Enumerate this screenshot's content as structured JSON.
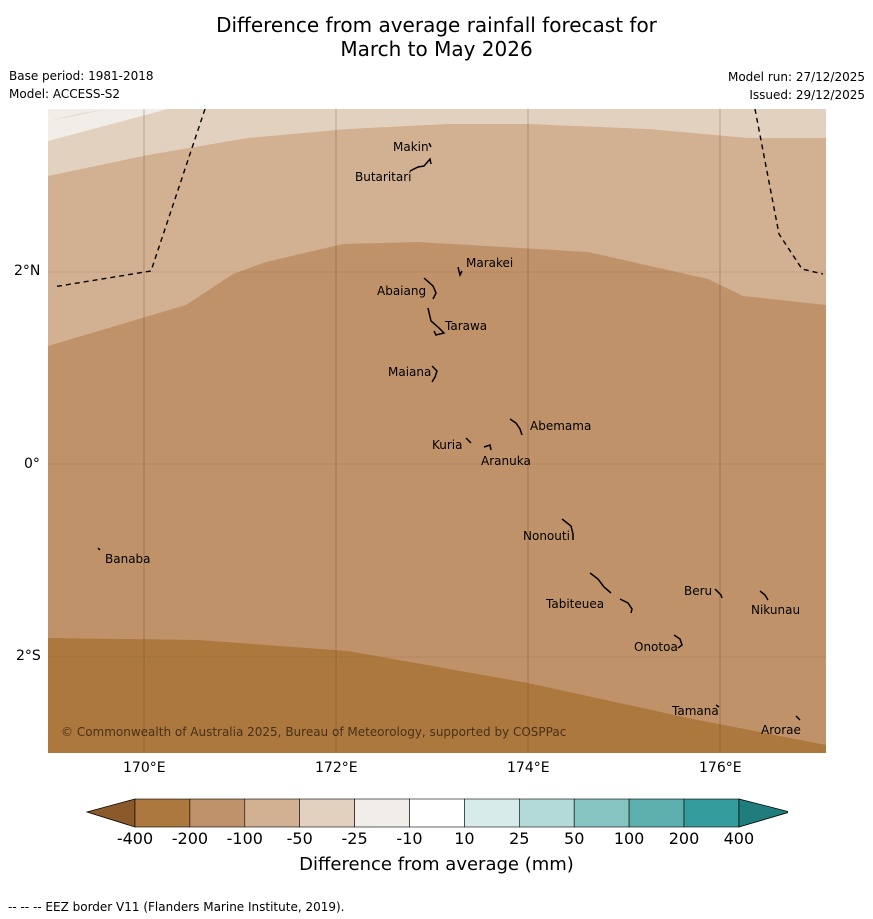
{
  "title_line1": "Difference from average rainfall forecast for",
  "title_line2": "March to May 2026",
  "base_period": "Base period: 1981-2018",
  "model": "Model: ACCESS-S2",
  "model_run": "Model run: 27/12/2025",
  "issued": "Issued: 29/12/2025",
  "copyright": "© Commonwealth of Australia 2025, Bureau of Meteorology, supported by COSPPac",
  "lon_labels": [
    "170°E",
    "172°E",
    "174°E",
    "176°E"
  ],
  "lat_labels": [
    "2°N",
    "0°",
    "2°S"
  ],
  "places": [
    "Makin",
    "Butaritari",
    "Marakei",
    "Abaiang",
    "Tarawa",
    "Maiana",
    "Abemama",
    "Kuria",
    "Aranuka",
    "Nonouti",
    "Banaba",
    "Beru",
    "Nikunau",
    "Tabiteuea",
    "Onotoa",
    "Tamana",
    "Arorae"
  ],
  "colorbar": {
    "title": "Difference from average (mm)",
    "labels": [
      "-400",
      "-200",
      "-100",
      "-50",
      "-25",
      "-10",
      "10",
      "25",
      "50",
      "100",
      "200",
      "400"
    ],
    "colors": [
      "#8a5a2b",
      "#ad783e",
      "#c09269",
      "#d2b092",
      "#e3d1c0",
      "#f1ede8",
      "#ffffff",
      "#d7ebea",
      "#b3d9d8",
      "#86c4c2",
      "#5dafae",
      "#349c9c",
      "#1f7e7d"
    ]
  },
  "footer": "-- -- -- EEZ border V11 (Flanders Marine Institute, 2019)."
}
